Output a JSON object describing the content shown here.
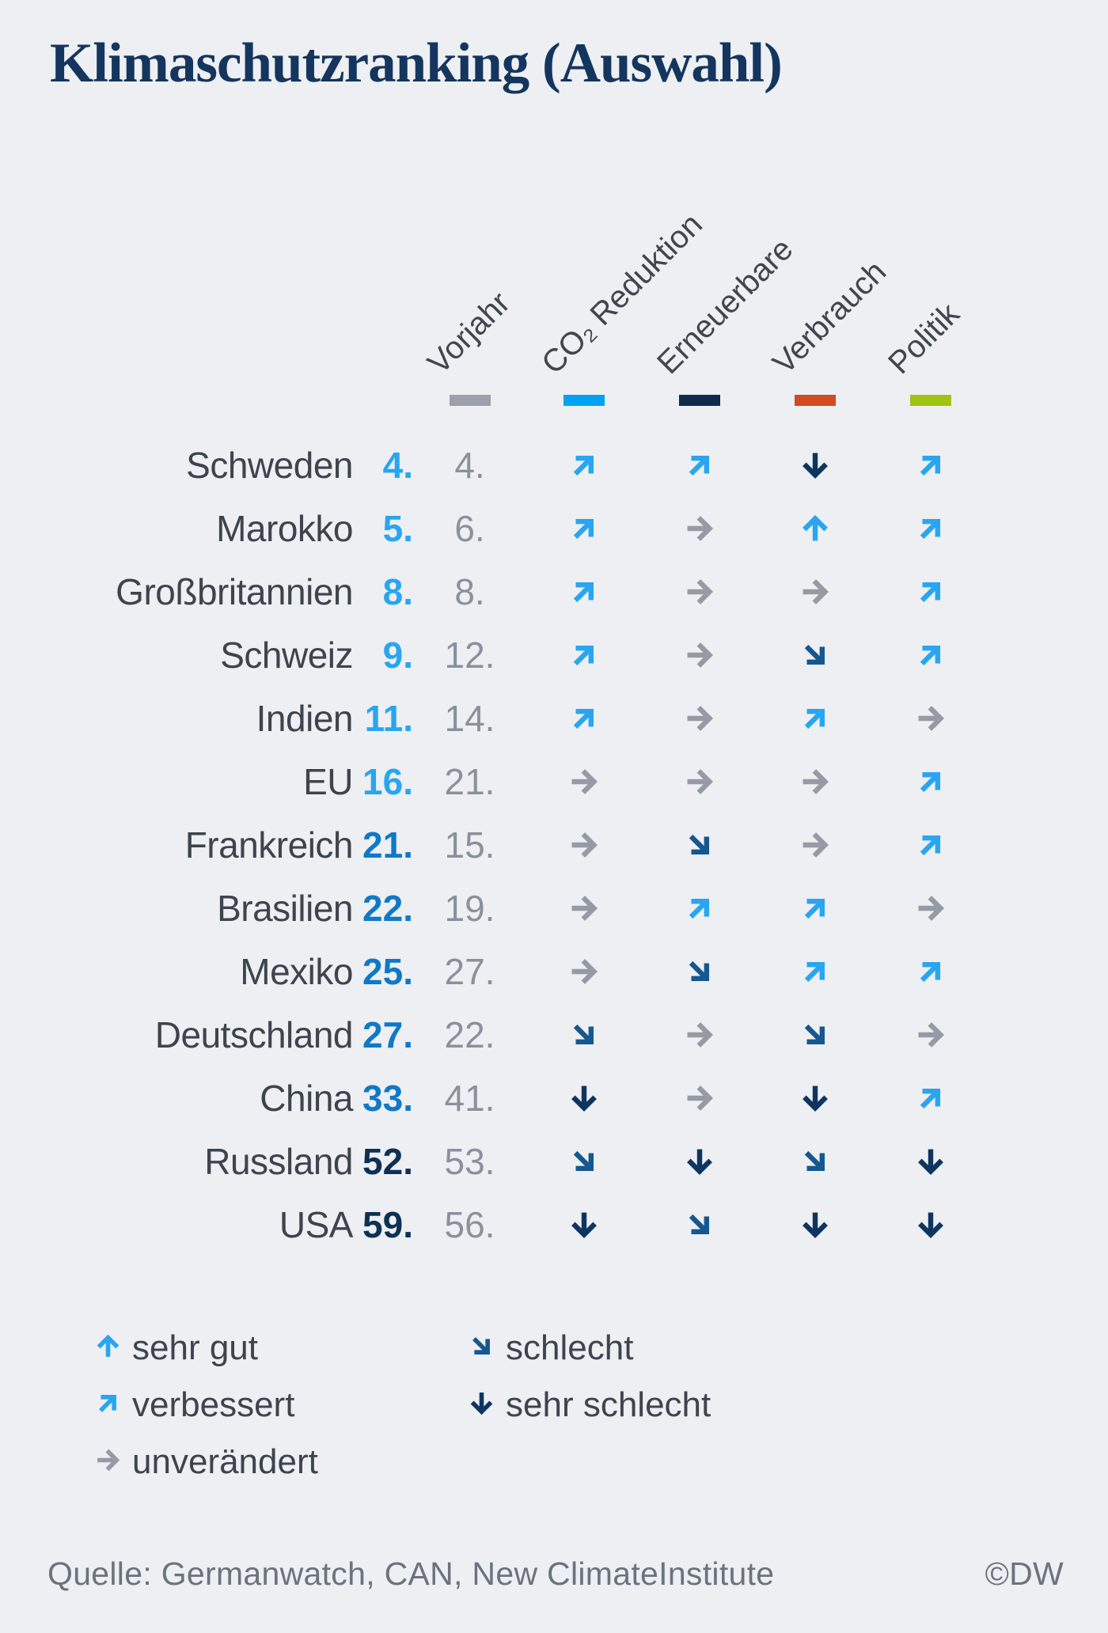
{
  "chart_data": {
    "type": "table",
    "title": "Klimaschutzranking (Auswahl)",
    "columns": [
      {
        "key": "vorjahr",
        "label": "Vorjahr",
        "swatch_color": "#9ba1aa"
      },
      {
        "key": "co2-reduktion",
        "label": "CO₂ Reduktion",
        "swatch_color": "#00a2f1"
      },
      {
        "key": "erneuerbare",
        "label": "Erneuerbare",
        "swatch_color": "#0e2b4b"
      },
      {
        "key": "verbrauch",
        "label": "Verbrauch",
        "swatch_color": "#d14a22"
      },
      {
        "key": "politik",
        "label": "Politik",
        "swatch_color": "#a0c413"
      }
    ],
    "rows": [
      {
        "country": "Schweden",
        "rank": "4.",
        "rank_tier": "light",
        "vorjahr": "4.",
        "trends": [
          "verbessert",
          "verbessert",
          "sehr-schlecht",
          "verbessert"
        ]
      },
      {
        "country": "Marokko",
        "rank": "5.",
        "rank_tier": "light",
        "vorjahr": "6.",
        "trends": [
          "verbessert",
          "unveraendert",
          "sehr-gut",
          "verbessert"
        ]
      },
      {
        "country": "Großbritannien",
        "rank": "8.",
        "rank_tier": "light",
        "vorjahr": "8.",
        "trends": [
          "verbessert",
          "unveraendert",
          "unveraendert",
          "verbessert"
        ]
      },
      {
        "country": "Schweiz",
        "rank": "9.",
        "rank_tier": "light",
        "vorjahr": "12.",
        "trends": [
          "verbessert",
          "unveraendert",
          "schlecht",
          "verbessert"
        ]
      },
      {
        "country": "Indien",
        "rank": "11.",
        "rank_tier": "light",
        "vorjahr": "14.",
        "trends": [
          "verbessert",
          "unveraendert",
          "verbessert",
          "unveraendert"
        ]
      },
      {
        "country": "EU",
        "rank": "16.",
        "rank_tier": "light",
        "vorjahr": "21.",
        "trends": [
          "unveraendert",
          "unveraendert",
          "unveraendert",
          "verbessert"
        ]
      },
      {
        "country": "Frankreich",
        "rank": "21.",
        "rank_tier": "medium",
        "vorjahr": "15.",
        "trends": [
          "unveraendert",
          "schlecht",
          "unveraendert",
          "verbessert"
        ]
      },
      {
        "country": "Brasilien",
        "rank": "22.",
        "rank_tier": "medium",
        "vorjahr": "19.",
        "trends": [
          "unveraendert",
          "verbessert",
          "verbessert",
          "unveraendert"
        ]
      },
      {
        "country": "Mexiko",
        "rank": "25.",
        "rank_tier": "medium",
        "vorjahr": "27.",
        "trends": [
          "unveraendert",
          "schlecht",
          "verbessert",
          "verbessert"
        ]
      },
      {
        "country": "Deutschland",
        "rank": "27.",
        "rank_tier": "medium",
        "vorjahr": "22.",
        "trends": [
          "schlecht",
          "unveraendert",
          "schlecht",
          "unveraendert"
        ]
      },
      {
        "country": "China",
        "rank": "33.",
        "rank_tier": "medium",
        "vorjahr": "41.",
        "trends": [
          "sehr-schlecht",
          "unveraendert",
          "sehr-schlecht",
          "verbessert"
        ]
      },
      {
        "country": "Russland",
        "rank": "52.",
        "rank_tier": "dark",
        "vorjahr": "53.",
        "trends": [
          "schlecht",
          "sehr-schlecht",
          "schlecht",
          "sehr-schlecht"
        ]
      },
      {
        "country": "USA",
        "rank": "59.",
        "rank_tier": "dark",
        "vorjahr": "56.",
        "trends": [
          "sehr-schlecht",
          "schlecht",
          "sehr-schlecht",
          "sehr-schlecht"
        ]
      }
    ]
  },
  "legend": {
    "items": [
      {
        "trend": "sehr-gut",
        "label": "sehr gut"
      },
      {
        "trend": "verbessert",
        "label": "verbessert"
      },
      {
        "trend": "unveraendert",
        "label": "unverändert"
      },
      {
        "trend": "schlecht",
        "label": "schlecht"
      },
      {
        "trend": "sehr-schlecht",
        "label": "sehr schlecht"
      }
    ]
  },
  "colors": {
    "background": "#edeff2",
    "title": "#14355e",
    "text": "#3d444d",
    "vorjahr_text": "#8a919c",
    "footer_text": "#6a737e",
    "trend": {
      "sehr-gut": "#29a5f1",
      "verbessert": "#29a5f1",
      "unveraendert": "#949ba5",
      "schlecht": "#15578f",
      "sehr-schlecht": "#0e3560"
    },
    "rank_tier": {
      "light": "#29a5f1",
      "medium": "#0f78c8",
      "dark": "#0e3055"
    }
  },
  "footer": {
    "source": "Quelle: Germanwatch, CAN, New ClimateInstitute",
    "copyright": "©DW"
  }
}
